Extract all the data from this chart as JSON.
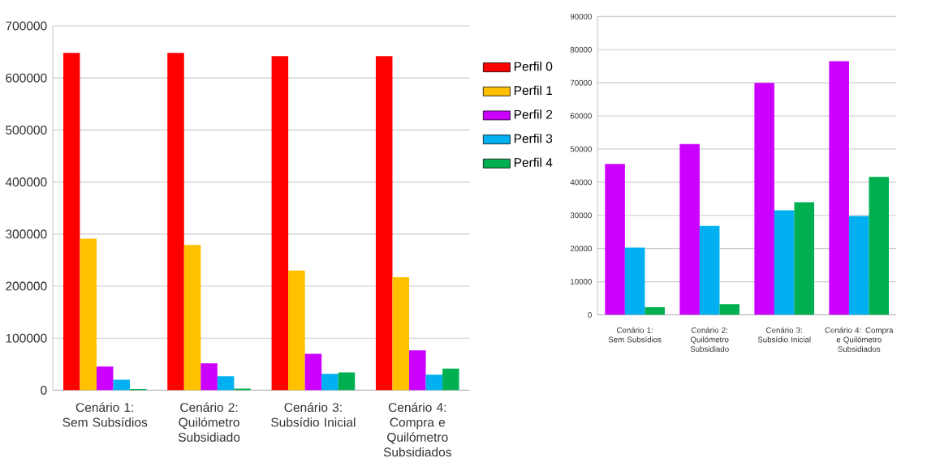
{
  "chart_data": [
    {
      "type": "bar",
      "categories": [
        "Cenário 1: Sem Subsídios",
        "Cenário 2: Quilómetro Subsidiado",
        "Cenário 3: Subsídio Inicial",
        "Cenário 4: Compra e Quilómetro Subsidiados"
      ],
      "series": [
        {
          "name": "Perfil 0",
          "color": "#ff0000",
          "values": [
            648000,
            648000,
            642000,
            642000
          ]
        },
        {
          "name": "Perfil 1",
          "color": "#ffc000",
          "values": [
            291000,
            279000,
            230000,
            217000
          ]
        },
        {
          "name": "Perfil 2",
          "color": "#cc00ff",
          "values": [
            45500,
            51500,
            70000,
            76500
          ]
        },
        {
          "name": "Perfil 3",
          "color": "#00b0f0",
          "values": [
            20300,
            26800,
            31500,
            29800
          ]
        },
        {
          "name": "Perfil 4",
          "color": "#00b050",
          "values": [
            2300,
            3200,
            34000,
            41600
          ]
        }
      ],
      "ylim": [
        0,
        700000
      ],
      "yticks": [
        0,
        100000,
        200000,
        300000,
        400000,
        500000,
        600000,
        700000
      ],
      "grid": "y",
      "legend": "right"
    },
    {
      "type": "bar",
      "categories": [
        "Cenário 1: Sem Subsídios",
        "Cenário 2: Quilómetro Subsidiado",
        "Cenário 3: Subsídio Inicial",
        "Cenário 4: Compra e Quilómetro Subsidiados"
      ],
      "series": [
        {
          "color": "#cc00ff",
          "values": [
            45500,
            51500,
            70000,
            76500
          ]
        },
        {
          "color": "#00b0f0",
          "values": [
            20300,
            26800,
            31500,
            29800
          ]
        },
        {
          "color": "#00b050",
          "values": [
            2300,
            3200,
            34000,
            41600
          ]
        }
      ],
      "ylim": [
        0,
        90000
      ],
      "yticks": [
        0,
        10000,
        20000,
        30000,
        40000,
        50000,
        60000,
        70000,
        80000,
        90000
      ],
      "grid": "y"
    }
  ]
}
